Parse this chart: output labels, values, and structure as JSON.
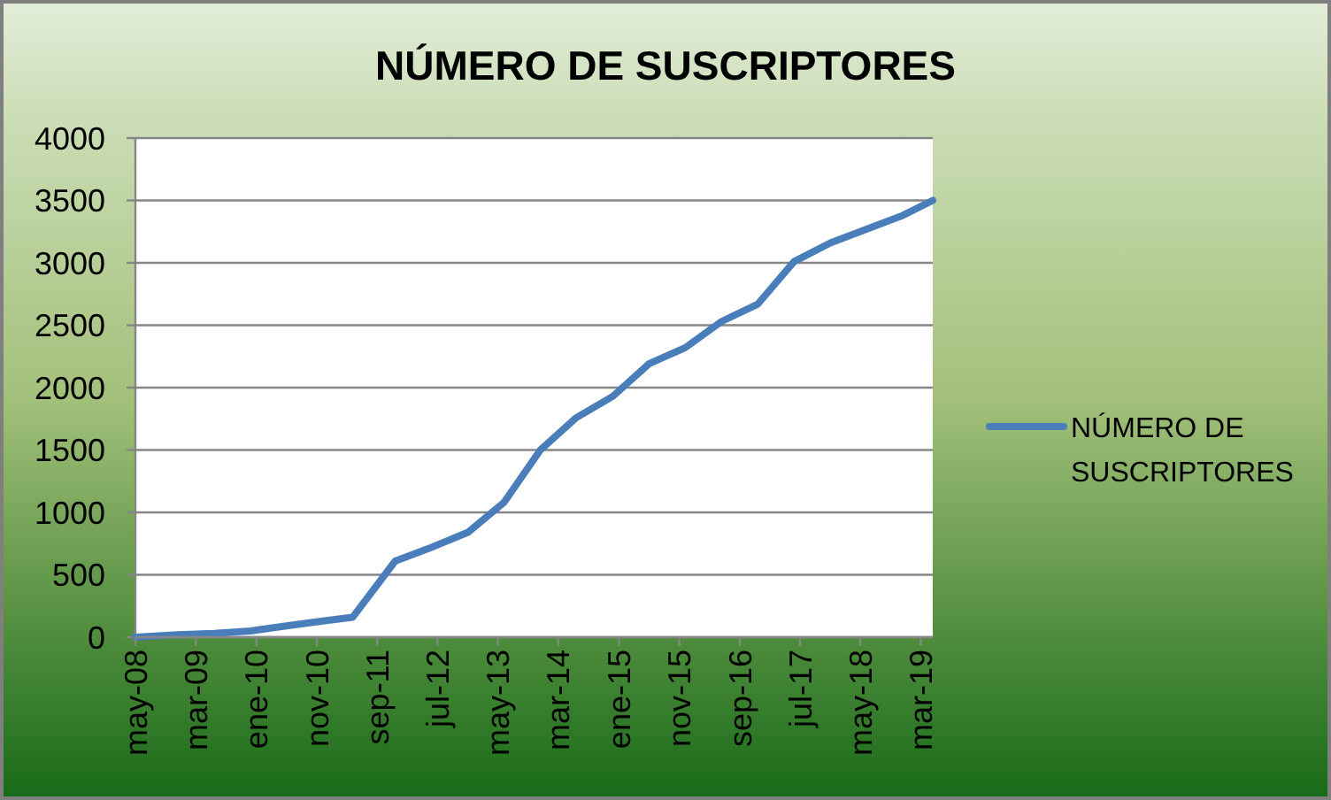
{
  "chart_data": {
    "type": "line",
    "title": "NÚMERO DE SUSCRIPTORES",
    "x": [
      "2008-05",
      "2008-12",
      "2009-06",
      "2009-12",
      "2010-06",
      "2010-12",
      "2011-05",
      "2011-12",
      "2012-06",
      "2012-12",
      "2013-06",
      "2013-12",
      "2014-06",
      "2014-12",
      "2015-06",
      "2015-12",
      "2016-06",
      "2016-12",
      "2017-06",
      "2017-12",
      "2018-06",
      "2018-12",
      "2019-05"
    ],
    "series": [
      {
        "name": "NÚMERO DE SUSCRIPTORES",
        "color": "#4a7ebb",
        "values": [
          0,
          20,
          30,
          50,
          90,
          130,
          160,
          610,
          720,
          840,
          1080,
          1500,
          1760,
          1930,
          2190,
          2320,
          2530,
          2670,
          3010,
          3160,
          3270,
          3380,
          3500
        ]
      }
    ],
    "xlim": [
      "2008-05",
      "2019-05"
    ],
    "xticks": [
      {
        "value": "2008-05",
        "label": "may-08"
      },
      {
        "value": "2009-03",
        "label": "mar-09"
      },
      {
        "value": "2010-01",
        "label": "ene-10"
      },
      {
        "value": "2010-11",
        "label": "nov-10"
      },
      {
        "value": "2011-09",
        "label": "sep-11"
      },
      {
        "value": "2012-07",
        "label": "jul-12"
      },
      {
        "value": "2013-05",
        "label": "may-13"
      },
      {
        "value": "2014-03",
        "label": "mar-14"
      },
      {
        "value": "2015-01",
        "label": "ene-15"
      },
      {
        "value": "2015-11",
        "label": "nov-15"
      },
      {
        "value": "2016-09",
        "label": "sep-16"
      },
      {
        "value": "2017-07",
        "label": "jul-17"
      },
      {
        "value": "2018-05",
        "label": "may-18"
      },
      {
        "value": "2019-03",
        "label": "mar-19"
      }
    ],
    "ylim": [
      0,
      4000
    ],
    "yticks": [
      0,
      500,
      1000,
      1500,
      2000,
      2500,
      3000,
      3500,
      4000
    ],
    "grid": "y",
    "legend": "right"
  }
}
